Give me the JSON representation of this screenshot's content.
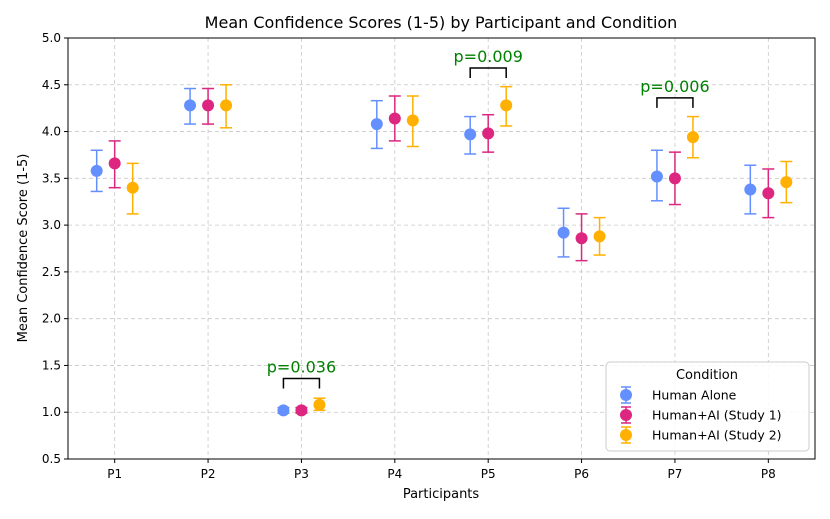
{
  "chart_data": {
    "type": "scatter",
    "title": "Mean Confidence Scores (1-5) by Participant and Condition",
    "xlabel": "Participants",
    "ylabel": "Mean Confidence Score (1-5)",
    "ylim": [
      0.5,
      5.0
    ],
    "yticks": [
      "0.5",
      "1.0",
      "1.5",
      "2.0",
      "2.5",
      "3.0",
      "3.5",
      "4.0",
      "4.5",
      "5.0"
    ],
    "grid": true,
    "categories": [
      "P1",
      "P2",
      "P3",
      "P4",
      "P5",
      "P6",
      "P7",
      "P8"
    ],
    "series": [
      {
        "name": "Human Alone",
        "color": "#648FFF",
        "values": [
          3.58,
          4.28,
          1.02,
          4.08,
          3.97,
          2.92,
          3.52,
          3.38
        ],
        "lower": [
          3.36,
          4.08,
          0.99,
          3.82,
          3.76,
          2.66,
          3.26,
          3.12
        ],
        "upper": [
          3.8,
          4.46,
          1.05,
          4.33,
          4.16,
          3.18,
          3.8,
          3.64
        ]
      },
      {
        "name": "Human+AI (Study 1)",
        "color": "#DC267F",
        "values": [
          3.66,
          4.28,
          1.02,
          4.14,
          3.98,
          2.86,
          3.5,
          3.34
        ],
        "lower": [
          3.4,
          4.08,
          0.99,
          3.9,
          3.78,
          2.62,
          3.22,
          3.08
        ],
        "upper": [
          3.9,
          4.46,
          1.05,
          4.38,
          4.18,
          3.12,
          3.78,
          3.6
        ]
      },
      {
        "name": "Human+AI (Study 2)",
        "color": "#FFB000",
        "values": [
          3.4,
          4.28,
          1.08,
          4.12,
          4.28,
          2.88,
          3.94,
          3.46
        ],
        "lower": [
          3.12,
          4.04,
          1.02,
          3.84,
          4.06,
          2.68,
          3.72,
          3.24
        ],
        "upper": [
          3.66,
          4.5,
          1.15,
          4.38,
          4.48,
          3.08,
          4.16,
          3.68
        ]
      }
    ],
    "annotations": [
      {
        "category": "P3",
        "label": "p=0.036",
        "bracket_y": 1.36,
        "color": "#008000"
      },
      {
        "category": "P5",
        "label": "p=0.009",
        "bracket_y": 4.68,
        "color": "#008000"
      },
      {
        "category": "P7",
        "label": "p=0.006",
        "bracket_y": 4.36,
        "color": "#008000"
      }
    ],
    "legend": {
      "title": "Condition",
      "placement": "bottom-right"
    }
  }
}
